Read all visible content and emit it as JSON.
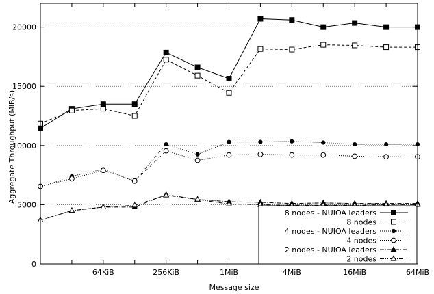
{
  "chart_data": {
    "type": "line",
    "xlabel": "Message size",
    "ylabel": "Aggregate Throughput (MiB/s)",
    "x_tick_labels": [
      "64KiB",
      "256KiB",
      "1MiB",
      "4MiB",
      "16MiB",
      "64MiB"
    ],
    "x_tick_values": [
      65536,
      262144,
      1048576,
      4194304,
      16777216,
      67108864
    ],
    "x_scale": "log2",
    "xlim": [
      16384,
      67108864
    ],
    "ylim": [
      0,
      22000
    ],
    "y_ticks": [
      0,
      5000,
      10000,
      15000,
      20000
    ],
    "grid": "horizontal dotted",
    "legend_position": "bottom-right",
    "x": [
      16384,
      32768,
      65536,
      131072,
      262144,
      524288,
      1048576,
      2097152,
      4194304,
      8388608,
      16777216,
      33554432,
      67108864
    ],
    "series": [
      {
        "name": "8 nodes - NUIOA leaders",
        "marker": "square-filled",
        "dash": "solid",
        "values": [
          11450,
          13100,
          13500,
          13500,
          17850,
          16600,
          15650,
          20700,
          20600,
          20000,
          20350,
          20000,
          20000
        ]
      },
      {
        "name": "8 nodes",
        "marker": "square-open",
        "dash": "dashed",
        "values": [
          11850,
          12950,
          13100,
          12500,
          17250,
          15900,
          14450,
          18150,
          18100,
          18500,
          18450,
          18300,
          18300
        ]
      },
      {
        "name": "4 nodes - NUIOA leaders",
        "marker": "circle-filled",
        "dash": "dotted",
        "values": [
          6500,
          7400,
          8000,
          7000,
          10100,
          9250,
          10300,
          10300,
          10350,
          10250,
          10100,
          10100,
          10100
        ]
      },
      {
        "name": "4 nodes",
        "marker": "circle-open",
        "dash": "dotted",
        "values": [
          6550,
          7200,
          7900,
          7000,
          9550,
          8750,
          9200,
          9250,
          9200,
          9200,
          9100,
          9050,
          9050
        ]
      },
      {
        "name": "2 nodes - NUIOA leaders",
        "marker": "triangle-filled",
        "dash": "dashdot",
        "values": [
          3700,
          4500,
          4800,
          4800,
          5850,
          5450,
          5250,
          5200,
          5100,
          5150,
          5100,
          5100,
          5100
        ]
      },
      {
        "name": "2 nodes",
        "marker": "triangle-open",
        "dash": "dashdotdot",
        "values": [
          3700,
          4500,
          4800,
          4950,
          5800,
          5450,
          5050,
          5000,
          4950,
          4950,
          4950,
          5000,
          5000
        ]
      }
    ]
  }
}
